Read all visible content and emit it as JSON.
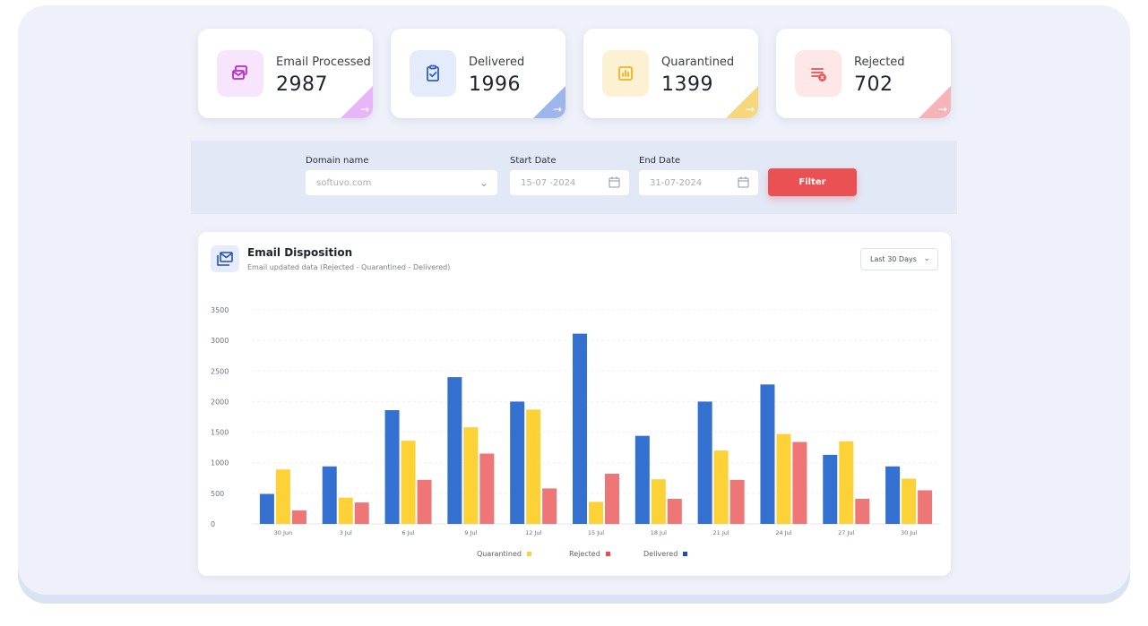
{
  "stats": [
    {
      "label": "Email Processed",
      "value": "2987",
      "icon": "email-stack-icon",
      "icon_bg": "#f6e5fd",
      "icon_color": "#c026d3",
      "corner_color": "#e7b6f6"
    },
    {
      "label": "Delivered",
      "value": "1996",
      "icon": "clipboard-check-icon",
      "icon_bg": "#e4ebfa",
      "icon_color": "#2e5fc8",
      "corner_color": "#9fb6ec"
    },
    {
      "label": "Quarantined",
      "value": "1399",
      "icon": "chart-box-icon",
      "icon_bg": "#fdf1d3",
      "icon_color": "#f2b21a",
      "corner_color": "#f7d77e"
    },
    {
      "label": "Rejected",
      "value": "702",
      "icon": "reject-list-icon",
      "icon_bg": "#fde7e7",
      "icon_color": "#ea5153",
      "corner_color": "#f5b4b7"
    }
  ],
  "filter": {
    "domain_label": "Domain name",
    "domain_value": "softuvo.com",
    "start_label": "Start Date",
    "start_value": "15-07 -2024",
    "end_label": "End Date",
    "end_value": "31-07-2024",
    "button_label": "Filter"
  },
  "panel": {
    "title": "Email Disposition",
    "subtitle": "Email updated data (Rejected - Quarantined - Delivered)",
    "range_label": "Last 30 Days"
  },
  "chart_data": {
    "type": "bar",
    "categories": [
      "30 Jun",
      "3 Jul",
      "6 Jul",
      "9 Jul",
      "12 Jul",
      "15 Jul",
      "18 Jul",
      "21 Jul",
      "24 Jul",
      "27 Jul",
      "30 Jul"
    ],
    "ylim": [
      0,
      3500
    ],
    "yticks": [
      0,
      500,
      1000,
      1500,
      2000,
      2500,
      3000,
      3500
    ],
    "grid": true,
    "series": [
      {
        "name": "Delivered",
        "color": "#3470cf",
        "values": [
          490,
          940,
          1860,
          2400,
          2000,
          3110,
          1440,
          2000,
          2280,
          1130,
          940
        ]
      },
      {
        "name": "Quarantined",
        "color": "#fdd236",
        "values": [
          890,
          430,
          1360,
          1580,
          1870,
          360,
          730,
          1200,
          1470,
          1350,
          740
        ]
      },
      {
        "name": "Rejected",
        "color": "#ef7676",
        "values": [
          220,
          350,
          720,
          1150,
          580,
          820,
          410,
          720,
          1340,
          410,
          550
        ]
      }
    ],
    "legend": {
      "placement": "bottom",
      "items": [
        {
          "label": "Quarantined",
          "color": "#fdd236"
        },
        {
          "label": "Rejected",
          "color": "#ea4d4d"
        },
        {
          "label": "Delivered",
          "color": "#1f4fb3"
        }
      ]
    }
  }
}
